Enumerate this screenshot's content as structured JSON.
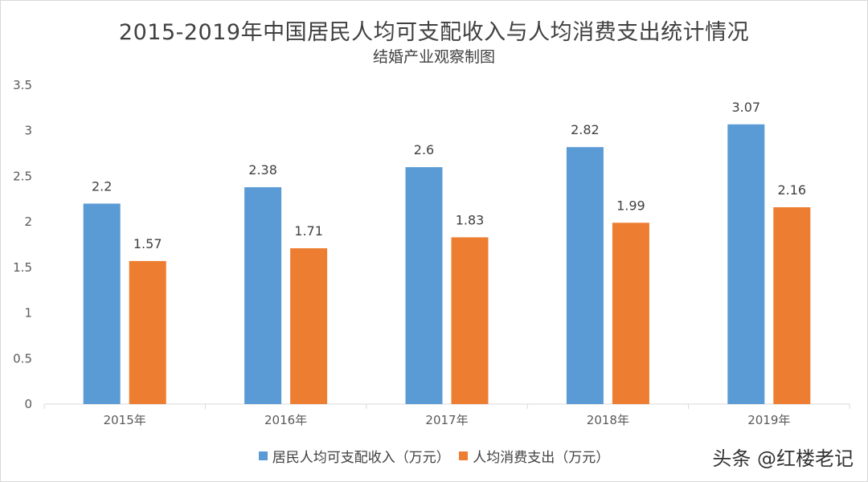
{
  "chart_data": {
    "type": "bar",
    "title": "2015-2019年中国居民人均可支配收入与人均消费支出统计情况",
    "subtitle": "结婚产业观察制图",
    "categories": [
      "2015年",
      "2016年",
      "2017年",
      "2018年",
      "2019年"
    ],
    "series": [
      {
        "name": "居民人均可支配收入（万元）",
        "color": "#5b9bd5",
        "values": [
          2.2,
          2.38,
          2.6,
          2.82,
          3.07
        ]
      },
      {
        "name": "人均消费支出（万元）",
        "color": "#ed7d31",
        "values": [
          1.57,
          1.71,
          1.83,
          1.99,
          2.16
        ]
      }
    ],
    "yticks": [
      0,
      0.5,
      1,
      1.5,
      2,
      2.5,
      3,
      3.5
    ],
    "ylim": [
      0,
      3.5
    ],
    "legend_position": "bottom",
    "grid": false
  },
  "watermark": "头条 @红楼老记"
}
